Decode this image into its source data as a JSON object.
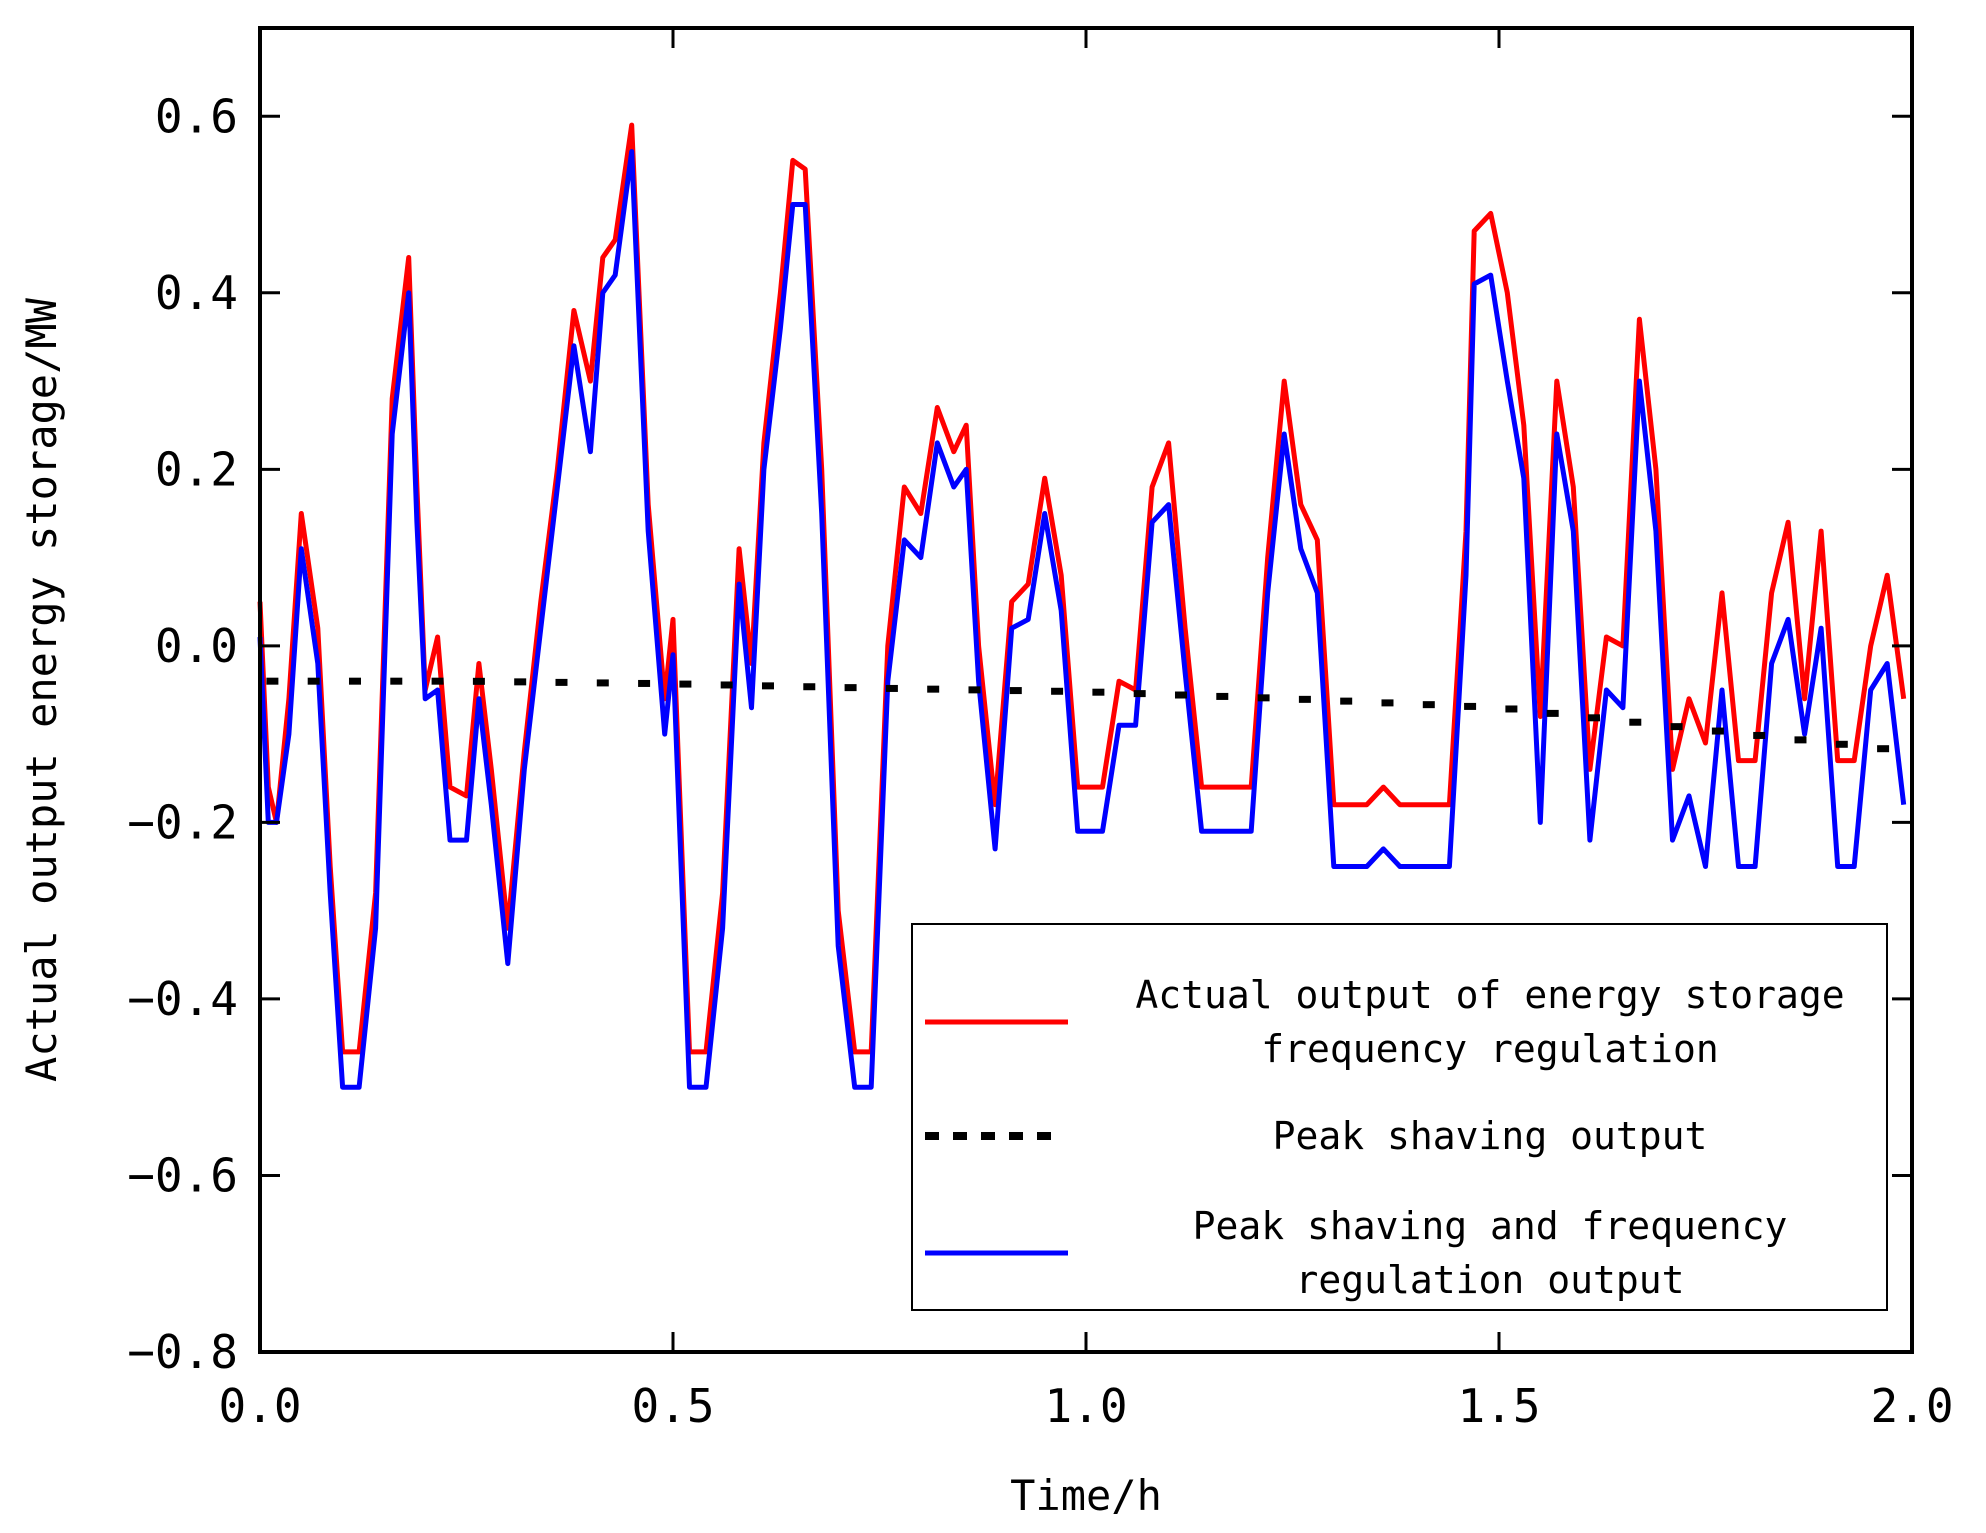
{
  "chart_data": {
    "type": "line",
    "title": "",
    "xlabel": "Time/h",
    "ylabel": "Actual output energy storage/MW",
    "xlim": [
      0.0,
      2.0
    ],
    "ylim": [
      -0.8,
      0.7
    ],
    "xticks": [
      0.0,
      0.5,
      1.0,
      1.5,
      2.0
    ],
    "xtick_labels": [
      "0.0",
      "0.5",
      "1.0",
      "1.5",
      "2.0"
    ],
    "yticks": [
      -0.8,
      -0.6,
      -0.4,
      -0.2,
      0.0,
      0.2,
      0.4,
      0.6
    ],
    "ytick_labels": [
      "−0.8",
      "−0.6",
      "−0.4",
      "−0.2",
      "0.0",
      "0.2",
      "0.4",
      "0.6"
    ],
    "grid": false,
    "legend_position": "bottom-right",
    "series": [
      {
        "name": "Actual output of energy storage frequency regulation",
        "legend_lines": [
          "Actual output of energy storage",
          "frequency regulation"
        ],
        "color": "#ff0000",
        "style": "solid",
        "x": [
          0.0,
          0.01,
          0.02,
          0.035,
          0.05,
          0.07,
          0.085,
          0.1,
          0.12,
          0.14,
          0.16,
          0.18,
          0.19,
          0.2,
          0.215,
          0.23,
          0.25,
          0.265,
          0.28,
          0.3,
          0.32,
          0.34,
          0.36,
          0.38,
          0.4,
          0.415,
          0.43,
          0.45,
          0.47,
          0.49,
          0.5,
          0.52,
          0.54,
          0.56,
          0.58,
          0.595,
          0.61,
          0.63,
          0.645,
          0.66,
          0.68,
          0.7,
          0.72,
          0.74,
          0.76,
          0.78,
          0.8,
          0.82,
          0.84,
          0.855,
          0.87,
          0.89,
          0.91,
          0.93,
          0.95,
          0.97,
          0.99,
          1.0,
          1.02,
          1.04,
          1.06,
          1.08,
          1.1,
          1.12,
          1.14,
          1.16,
          1.18,
          1.2,
          1.22,
          1.24,
          1.26,
          1.28,
          1.3,
          1.32,
          1.34,
          1.36,
          1.38,
          1.4,
          1.42,
          1.44,
          1.46,
          1.47,
          1.49,
          1.51,
          1.53,
          1.55,
          1.57,
          1.59,
          1.61,
          1.63,
          1.65,
          1.67,
          1.69,
          1.71,
          1.73,
          1.75,
          1.77,
          1.79,
          1.81,
          1.83,
          1.85,
          1.87,
          1.89,
          1.91,
          1.93,
          1.95,
          1.97,
          1.99
        ],
        "values": [
          0.05,
          -0.16,
          -0.2,
          -0.06,
          0.15,
          0.02,
          -0.25,
          -0.46,
          -0.46,
          -0.28,
          0.28,
          0.44,
          0.18,
          -0.05,
          0.01,
          -0.16,
          -0.17,
          -0.02,
          -0.14,
          -0.32,
          -0.12,
          0.05,
          0.2,
          0.38,
          0.3,
          0.44,
          0.46,
          0.59,
          0.16,
          -0.06,
          0.03,
          -0.46,
          -0.46,
          -0.28,
          0.11,
          -0.02,
          0.23,
          0.4,
          0.55,
          0.54,
          0.2,
          -0.3,
          -0.46,
          -0.46,
          0.0,
          0.18,
          0.15,
          0.27,
          0.22,
          0.25,
          0.0,
          -0.18,
          0.05,
          0.07,
          0.19,
          0.08,
          -0.16,
          -0.16,
          -0.16,
          -0.04,
          -0.05,
          0.18,
          0.23,
          0.02,
          -0.16,
          -0.16,
          -0.16,
          -0.16,
          0.1,
          0.3,
          0.16,
          0.12,
          -0.18,
          -0.18,
          -0.18,
          -0.16,
          -0.18,
          -0.18,
          -0.18,
          -0.18,
          0.13,
          0.47,
          0.49,
          0.4,
          0.25,
          -0.08,
          0.3,
          0.18,
          -0.14,
          0.01,
          0.0,
          0.37,
          0.2,
          -0.14,
          -0.06,
          -0.11,
          0.06,
          -0.13,
          -0.13,
          0.06,
          0.14,
          -0.06,
          0.13,
          -0.13,
          -0.13,
          0.0,
          0.08,
          -0.06
        ]
      },
      {
        "name": "Peak shaving output",
        "legend_lines": [
          "Peak shaving output"
        ],
        "color": "#000000",
        "style": "dotted",
        "x": [
          0.0,
          0.25,
          0.5,
          0.75,
          1.0,
          1.25,
          1.5,
          1.75,
          2.0
        ],
        "values": [
          -0.04,
          -0.04,
          -0.043,
          -0.048,
          -0.052,
          -0.06,
          -0.07,
          -0.095,
          -0.12
        ]
      },
      {
        "name": "Peak shaving and frequency regulation output",
        "legend_lines": [
          "Peak shaving and frequency",
          "regulation output"
        ],
        "color": "#0000ff",
        "style": "solid",
        "x": [
          0.0,
          0.01,
          0.02,
          0.035,
          0.05,
          0.07,
          0.085,
          0.1,
          0.12,
          0.14,
          0.16,
          0.18,
          0.19,
          0.2,
          0.215,
          0.23,
          0.25,
          0.265,
          0.28,
          0.3,
          0.32,
          0.34,
          0.36,
          0.38,
          0.4,
          0.415,
          0.43,
          0.45,
          0.47,
          0.49,
          0.5,
          0.52,
          0.54,
          0.56,
          0.58,
          0.595,
          0.61,
          0.63,
          0.645,
          0.66,
          0.68,
          0.7,
          0.72,
          0.74,
          0.76,
          0.78,
          0.8,
          0.82,
          0.84,
          0.855,
          0.87,
          0.89,
          0.91,
          0.93,
          0.95,
          0.97,
          0.99,
          1.0,
          1.02,
          1.04,
          1.06,
          1.08,
          1.1,
          1.12,
          1.14,
          1.16,
          1.18,
          1.2,
          1.22,
          1.24,
          1.26,
          1.28,
          1.3,
          1.32,
          1.34,
          1.36,
          1.38,
          1.4,
          1.42,
          1.44,
          1.46,
          1.47,
          1.49,
          1.51,
          1.53,
          1.55,
          1.57,
          1.59,
          1.61,
          1.63,
          1.65,
          1.67,
          1.69,
          1.71,
          1.73,
          1.75,
          1.77,
          1.79,
          1.81,
          1.83,
          1.85,
          1.87,
          1.89,
          1.91,
          1.93,
          1.95,
          1.97,
          1.99
        ],
        "values": [
          0.01,
          -0.2,
          -0.2,
          -0.1,
          0.11,
          -0.02,
          -0.28,
          -0.5,
          -0.5,
          -0.32,
          0.24,
          0.4,
          0.14,
          -0.06,
          -0.05,
          -0.22,
          -0.22,
          -0.06,
          -0.18,
          -0.36,
          -0.14,
          0.02,
          0.18,
          0.34,
          0.22,
          0.4,
          0.42,
          0.56,
          0.13,
          -0.1,
          -0.01,
          -0.5,
          -0.5,
          -0.32,
          0.07,
          -0.07,
          0.2,
          0.36,
          0.5,
          0.5,
          0.15,
          -0.34,
          -0.5,
          -0.5,
          -0.04,
          0.12,
          0.1,
          0.23,
          0.18,
          0.2,
          -0.04,
          -0.23,
          0.02,
          0.03,
          0.15,
          0.04,
          -0.21,
          -0.21,
          -0.21,
          -0.09,
          -0.09,
          0.14,
          0.16,
          -0.03,
          -0.21,
          -0.21,
          -0.21,
          -0.21,
          0.06,
          0.24,
          0.11,
          0.06,
          -0.25,
          -0.25,
          -0.25,
          -0.23,
          -0.25,
          -0.25,
          -0.25,
          -0.25,
          0.08,
          0.41,
          0.42,
          0.3,
          0.19,
          -0.2,
          0.24,
          0.13,
          -0.22,
          -0.05,
          -0.07,
          0.3,
          0.13,
          -0.22,
          -0.17,
          -0.25,
          -0.05,
          -0.25,
          -0.25,
          -0.02,
          0.03,
          -0.1,
          0.02,
          -0.25,
          -0.25,
          -0.05,
          -0.02,
          -0.18
        ]
      }
    ]
  }
}
